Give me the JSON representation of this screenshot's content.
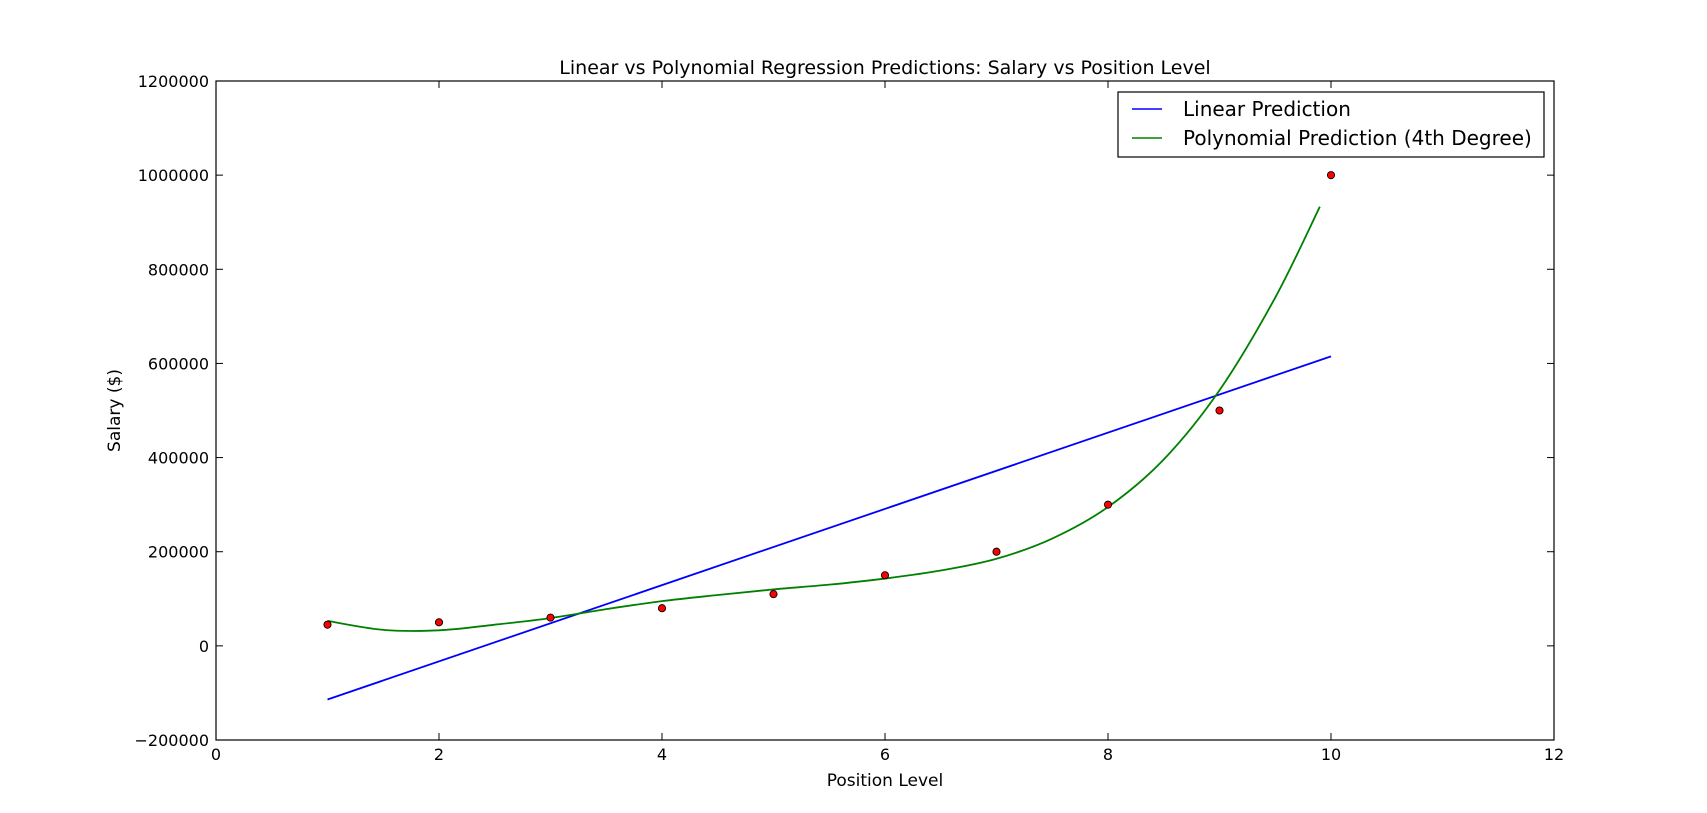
{
  "chart_data": {
    "type": "line",
    "title": "Linear vs Polynomial Regression Predictions: Salary vs Position Level",
    "xlabel": "Position Level",
    "ylabel": "Salary ($)",
    "xlim": [
      0,
      12
    ],
    "ylim": [
      -200000,
      1200000
    ],
    "xticks": [
      0,
      2,
      4,
      6,
      8,
      10,
      12
    ],
    "yticks": [
      -200000,
      0,
      200000,
      400000,
      600000,
      800000,
      1000000,
      1200000
    ],
    "ytick_labels": [
      "−200000",
      "0",
      "200000",
      "400000",
      "600000",
      "800000",
      "1000000",
      "1200000"
    ],
    "grid": false,
    "legend_position": "top-right",
    "scatter": {
      "color": "#ff0000",
      "x": [
        1,
        2,
        3,
        4,
        5,
        6,
        7,
        8,
        9,
        10
      ],
      "y": [
        45000,
        50000,
        60000,
        80000,
        110000,
        150000,
        200000,
        300000,
        500000,
        1000000
      ]
    },
    "series": [
      {
        "name": "Linear Prediction",
        "color": "#0000ff",
        "x": [
          1,
          10
        ],
        "y": [
          -114000,
          615000
        ]
      },
      {
        "name": "Polynomial Prediction (4th Degree)",
        "color": "#008000",
        "x": [
          1.0,
          1.5,
          2.0,
          2.5,
          3.0,
          3.5,
          4.0,
          4.5,
          5.0,
          5.5,
          6.0,
          6.5,
          7.0,
          7.5,
          8.0,
          8.5,
          9.0,
          9.5,
          9.9
        ],
        "y": [
          53000,
          34000,
          33000,
          45000,
          59000,
          78000,
          95000,
          108000,
          120000,
          130000,
          143000,
          160000,
          185000,
          228000,
          295000,
          396000,
          543000,
          740000,
          933000
        ]
      }
    ]
  }
}
